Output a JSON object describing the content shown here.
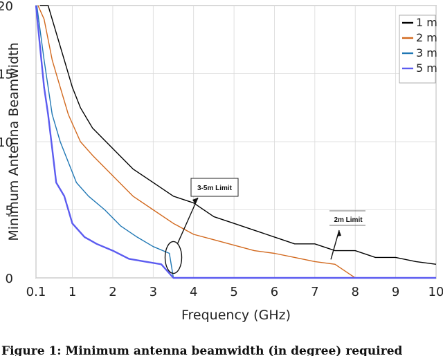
{
  "chart_data": {
    "type": "line",
    "title": "",
    "xlabel": "Frequency (GHz)",
    "ylabel": "Minimum Antenna Beamwidth",
    "xlim": [
      0.1,
      10
    ],
    "ylim": [
      0,
      20
    ],
    "x_ticks": [
      "0.1",
      "1",
      "2",
      "3",
      "4",
      "5",
      "6",
      "7",
      "8",
      "9",
      "10"
    ],
    "y_ticks": [
      "0",
      "5",
      "10",
      "15",
      "20"
    ],
    "grid": true,
    "legend_position": "top-right",
    "series": [
      {
        "name": "1 m",
        "color": "#000000",
        "x": [
          0.2,
          0.4,
          0.6,
          0.8,
          1.0,
          1.2,
          1.5,
          2.0,
          2.5,
          3.0,
          3.5,
          4.0,
          4.5,
          5.0,
          5.5,
          6.0,
          6.5,
          7.0,
          7.5,
          8.0,
          8.5,
          9.0,
          9.5,
          10.0
        ],
        "values": [
          20,
          20,
          18,
          16,
          14,
          12.5,
          11,
          9.5,
          8,
          7,
          6,
          5.5,
          4.5,
          4,
          3.5,
          3,
          2.5,
          2.5,
          2,
          2,
          1.5,
          1.5,
          1.2,
          1
        ]
      },
      {
        "name": "2 m",
        "color": "#d2691e",
        "x": [
          0.15,
          0.3,
          0.5,
          0.7,
          0.9,
          1.2,
          1.5,
          2.0,
          2.5,
          3.0,
          3.5,
          4.0,
          4.5,
          5.0,
          5.5,
          6.0,
          6.5,
          7.0,
          7.5,
          8.0,
          8.5,
          9.0,
          9.5,
          10.0
        ],
        "values": [
          20,
          19,
          16,
          14,
          12,
          10,
          9,
          7.5,
          6,
          5,
          4,
          3.2,
          2.8,
          2.4,
          2,
          1.8,
          1.5,
          1.2,
          1,
          0,
          0,
          0,
          0,
          0
        ]
      },
      {
        "name": "3 m",
        "color": "#1f77b4",
        "x": [
          0.12,
          0.3,
          0.5,
          0.7,
          0.9,
          1.1,
          1.4,
          1.8,
          2.2,
          2.6,
          3.0,
          3.4,
          3.5,
          4.0,
          5.0,
          6.0,
          7.0,
          8.0,
          9.0,
          10.0
        ],
        "values": [
          20,
          16,
          12,
          10,
          8.5,
          7,
          6,
          5,
          3.8,
          3,
          2.3,
          1.8,
          0,
          0,
          0,
          0,
          0,
          0,
          0,
          0
        ]
      },
      {
        "name": "5 m",
        "color": "#5b5bf0",
        "x": [
          0.1,
          0.2,
          0.3,
          0.4,
          0.5,
          0.6,
          0.8,
          1.0,
          1.3,
          1.6,
          2.0,
          2.4,
          2.8,
          3.2,
          3.5,
          4.0,
          5.0,
          6.0,
          7.0,
          8.0,
          9.0,
          10.0
        ],
        "values": [
          20,
          17,
          14,
          12,
          9.5,
          7,
          6,
          4,
          3,
          2.5,
          2,
          1.4,
          1.2,
          1,
          0,
          0,
          0,
          0,
          0,
          0,
          0,
          0
        ]
      }
    ],
    "annotations": [
      {
        "text": "3-5m Limit",
        "x": 3.5,
        "y": 1.5
      },
      {
        "text": "2m Limit",
        "x": 7.5,
        "y": 1.2
      }
    ]
  },
  "caption": "Figure 1: Minimum antenna beamwidth (in degree) required"
}
